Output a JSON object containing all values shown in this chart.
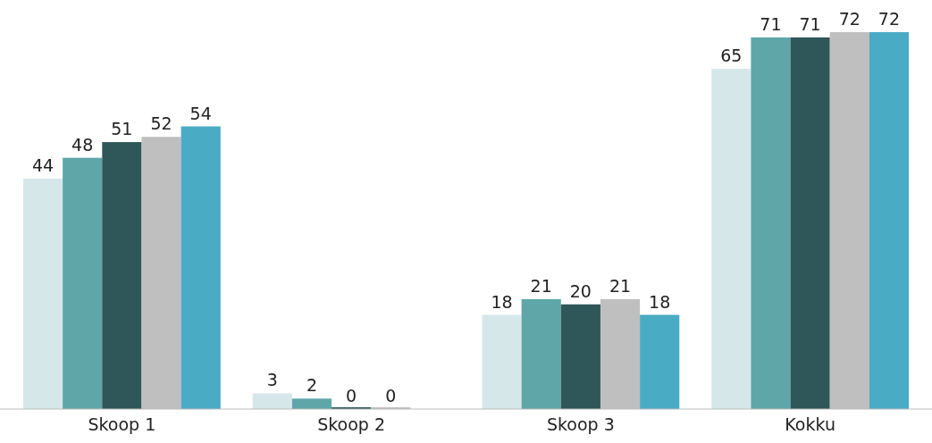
{
  "chart_data": {
    "type": "bar",
    "categories": [
      "Skoop 1",
      "Skoop 2",
      "Skoop 3",
      "Kokku"
    ],
    "series": [
      {
        "color": "#d6e7ea",
        "values": [
          44,
          3,
          18,
          65
        ]
      },
      {
        "color": "#5fa6a9",
        "values": [
          48,
          2,
          21,
          71
        ]
      },
      {
        "color": "#2f5658",
        "values": [
          51,
          0,
          20,
          71
        ]
      },
      {
        "color": "#bfbfbf",
        "values": [
          52,
          0,
          21,
          72
        ]
      },
      {
        "color": "#4aabc4",
        "values": [
          54,
          null,
          18,
          72
        ]
      }
    ],
    "data_labels": true
  }
}
